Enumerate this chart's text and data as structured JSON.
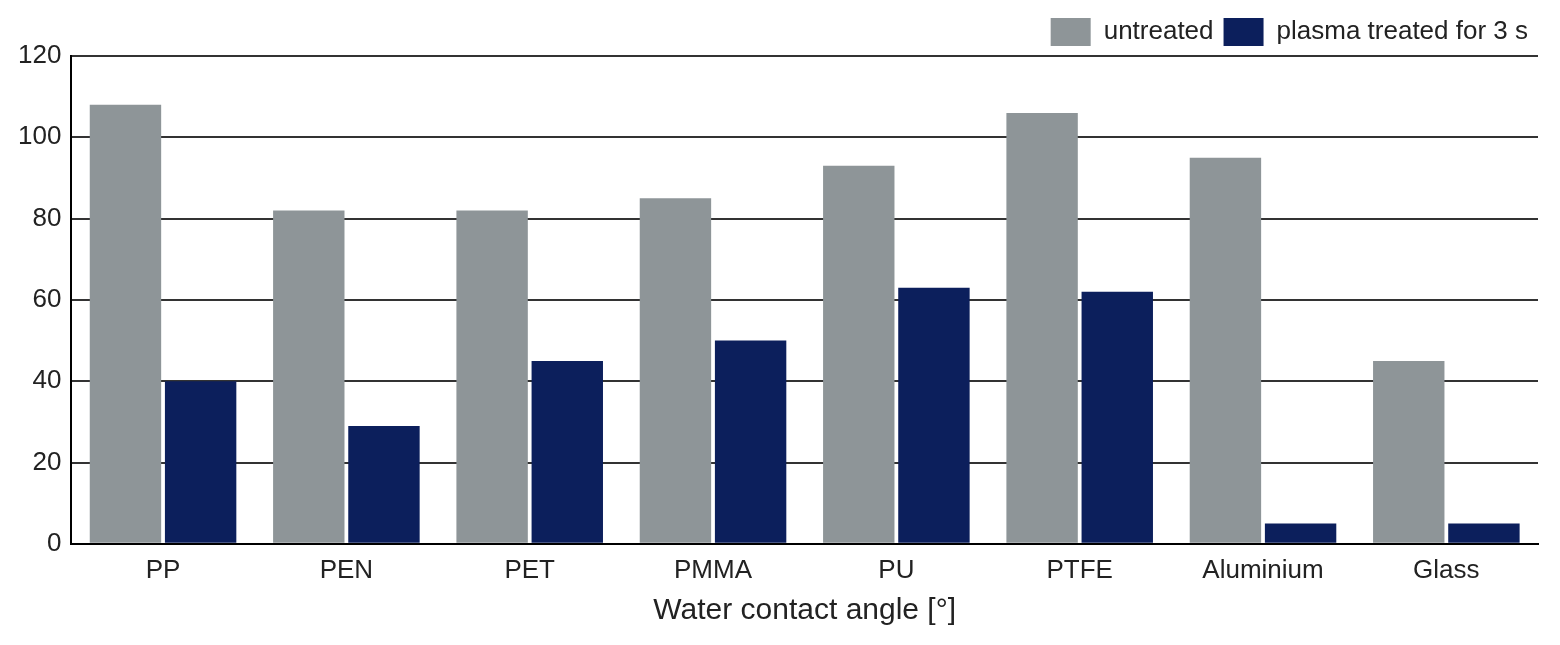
{
  "chart_data": {
    "type": "bar",
    "xlabel": "Water contact angle [°]",
    "categories": [
      "PP",
      "PEN",
      "PET",
      "PMMA",
      "PU",
      "PTFE",
      "Aluminium",
      "Glass"
    ],
    "series": [
      {
        "name": "untreated",
        "color": "#8e9598",
        "values": [
          108,
          82,
          82,
          85,
          93,
          106,
          95,
          45
        ]
      },
      {
        "name": "plasma treated for 3 s",
        "color": "#0c1f5c",
        "values": [
          40,
          29,
          45,
          50,
          63,
          62,
          5,
          5
        ]
      }
    ],
    "ylim": [
      0,
      120
    ],
    "yticks": [
      0,
      20,
      40,
      60,
      80,
      100,
      120
    ],
    "grid": "y",
    "legend": "top right"
  }
}
